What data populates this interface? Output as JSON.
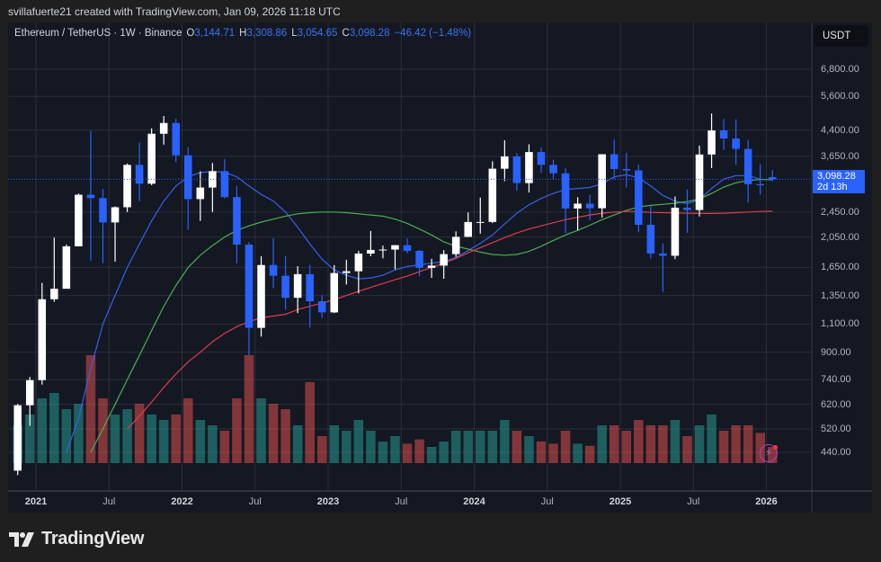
{
  "credit": "svillafuerte21 created with TradingView.com, Jan 09, 2026 11:18 UTC",
  "legend": {
    "symbol": "Ethereum / TetherUS · 1W · Binance",
    "o_label": "O",
    "open": "3,144.71",
    "h_label": "H",
    "high": "3,308.86",
    "l_label": "L",
    "low": "3,054.65",
    "c_label": "C",
    "close": "3,098.28",
    "change": "−46.42 (−1.48%)"
  },
  "currency_button": "USDT",
  "last_price": {
    "value": "3,098.28",
    "countdown": "2d 13h"
  },
  "brand": "TradingView",
  "colors": {
    "up_candle": "#ffffff",
    "down_candle": "#2962ff",
    "ma_blue": "#3661e8",
    "ma_green": "#4caf50",
    "ma_red": "#e03c4a",
    "volume_up": "#26a69a",
    "volume_down": "#ef5350",
    "accent": "#2962ff",
    "background": "#141823"
  },
  "chart_data": {
    "type": "candlestick",
    "y_scale": "log",
    "ylim": [
      440,
      6800
    ],
    "grid": true,
    "y_ticks": [
      "6,800.00",
      "5,600.00",
      "4,400.00",
      "3,650.00",
      "2,450.00",
      "2,050.00",
      "1,650.00",
      "1,350.00",
      "1,100.00",
      "900.00",
      "740.00",
      "620.00",
      "520.00",
      "440.00"
    ],
    "x_ticks": [
      {
        "label": "2021",
        "date": "2021-01",
        "year": true
      },
      {
        "label": "Jul",
        "date": "2021-07",
        "year": false
      },
      {
        "label": "2022",
        "date": "2022-01",
        "year": true
      },
      {
        "label": "Jul",
        "date": "2022-07",
        "year": false
      },
      {
        "label": "2023",
        "date": "2023-01",
        "year": true
      },
      {
        "label": "Jul",
        "date": "2023-07",
        "year": false
      },
      {
        "label": "2024",
        "date": "2024-01",
        "year": true
      },
      {
        "label": "Jul",
        "date": "2024-07",
        "year": false
      },
      {
        "label": "2025",
        "date": "2025-01",
        "year": true
      },
      {
        "label": "Jul",
        "date": "2025-07",
        "year": false
      },
      {
        "label": "2026",
        "date": "2026-01",
        "year": true
      }
    ],
    "first_date": "2020-11",
    "candles": [
      [
        "2020-11",
        386,
        622,
        374,
        616,
        35
      ],
      [
        "2020-12",
        616,
        754,
        532,
        737,
        45
      ],
      [
        "2021-01",
        737,
        1476,
        714,
        1314,
        60
      ],
      [
        "2021-02",
        1314,
        2041,
        1290,
        1416,
        65
      ],
      [
        "2021-03",
        1416,
        1943,
        1432,
        1918,
        50
      ],
      [
        "2021-04",
        1918,
        2797,
        1924,
        2773,
        55
      ],
      [
        "2021-05",
        2773,
        4372,
        1728,
        2707,
        100
      ],
      [
        "2021-06",
        2707,
        2891,
        1700,
        2275,
        60
      ],
      [
        "2021-07",
        2275,
        2551,
        1719,
        2536,
        45
      ],
      [
        "2021-08",
        2536,
        3466,
        2450,
        3433,
        50
      ],
      [
        "2021-09",
        3433,
        4027,
        2651,
        3001,
        55
      ],
      [
        "2021-10",
        3001,
        4460,
        2970,
        4288,
        45
      ],
      [
        "2021-11",
        4288,
        4868,
        3967,
        4631,
        40
      ],
      [
        "2021-12",
        4631,
        4778,
        3503,
        3676,
        45
      ],
      [
        "2022-01",
        3676,
        3900,
        2159,
        2688,
        60
      ],
      [
        "2022-02",
        2688,
        3280,
        2300,
        2919,
        40
      ],
      [
        "2022-03",
        2919,
        3479,
        2450,
        3282,
        35
      ],
      [
        "2022-04",
        3282,
        3580,
        2700,
        2727,
        30
      ],
      [
        "2022-05",
        2727,
        2955,
        1700,
        1942,
        60
      ],
      [
        "2022-06",
        1942,
        1974,
        881,
        1071,
        100
      ],
      [
        "2022-07",
        1071,
        1785,
        1006,
        1678,
        60
      ],
      [
        "2022-08",
        1678,
        2030,
        1422,
        1554,
        55
      ],
      [
        "2022-09",
        1554,
        1790,
        1220,
        1328,
        50
      ],
      [
        "2022-10",
        1328,
        1664,
        1190,
        1572,
        35
      ],
      [
        "2022-11",
        1572,
        1678,
        1073,
        1295,
        75
      ],
      [
        "2022-12",
        1295,
        1353,
        1150,
        1196,
        25
      ],
      [
        "2023-01",
        1196,
        1677,
        1190,
        1585,
        35
      ],
      [
        "2023-02",
        1585,
        1743,
        1460,
        1605,
        30
      ],
      [
        "2023-03",
        1605,
        1857,
        1370,
        1821,
        40
      ],
      [
        "2023-04",
        1821,
        2141,
        1786,
        1869,
        30
      ],
      [
        "2023-05",
        1869,
        1928,
        1760,
        1874,
        20
      ],
      [
        "2023-06",
        1874,
        1930,
        1626,
        1934,
        25
      ],
      [
        "2023-07",
        1934,
        2029,
        1826,
        1856,
        18
      ],
      [
        "2023-08",
        1856,
        1870,
        1550,
        1645,
        22
      ],
      [
        "2023-09",
        1645,
        1754,
        1531,
        1671,
        15
      ],
      [
        "2023-10",
        1671,
        1866,
        1521,
        1814,
        20
      ],
      [
        "2023-11",
        1814,
        2134,
        1778,
        2052,
        30
      ],
      [
        "2023-12",
        2052,
        2445,
        2048,
        2282,
        30
      ],
      [
        "2024-01",
        2282,
        2717,
        2100,
        2283,
        30
      ],
      [
        "2024-02",
        2283,
        3522,
        2265,
        3340,
        30
      ],
      [
        "2024-03",
        3340,
        4093,
        3056,
        3647,
        40
      ],
      [
        "2024-04",
        3647,
        3730,
        2853,
        3014,
        30
      ],
      [
        "2024-05",
        3014,
        3977,
        2817,
        3762,
        25
      ],
      [
        "2024-06",
        3762,
        3887,
        3240,
        3433,
        20
      ],
      [
        "2024-07",
        3433,
        3563,
        3087,
        3232,
        18
      ],
      [
        "2024-08",
        3232,
        3350,
        2111,
        2513,
        30
      ],
      [
        "2024-09",
        2513,
        2725,
        2150,
        2602,
        18
      ],
      [
        "2024-10",
        2602,
        2770,
        2310,
        2518,
        16
      ],
      [
        "2024-11",
        2518,
        3680,
        2356,
        3704,
        35
      ],
      [
        "2024-12",
        3704,
        4109,
        3100,
        3332,
        35
      ],
      [
        "2025-01",
        3332,
        3744,
        2920,
        3300,
        30
      ],
      [
        "2025-02",
        3300,
        3437,
        2120,
        2237,
        40
      ],
      [
        "2025-03",
        2237,
        2550,
        1760,
        1822,
        35
      ],
      [
        "2025-04",
        1822,
        1957,
        1385,
        1793,
        35
      ],
      [
        "2025-05",
        1793,
        2738,
        1750,
        2528,
        40
      ],
      [
        "2025-06",
        2528,
        2880,
        2111,
        2486,
        25
      ],
      [
        "2025-07",
        2486,
        3941,
        2373,
        3697,
        35
      ],
      [
        "2025-08",
        3697,
        4956,
        3355,
        4391,
        45
      ],
      [
        "2025-09",
        4391,
        4769,
        3815,
        4145,
        30
      ],
      [
        "2025-10",
        4145,
        4755,
        3435,
        3847,
        35
      ],
      [
        "2025-11",
        3847,
        4100,
        2623,
        2991,
        35
      ],
      [
        "2025-12",
        2991,
        3447,
        2775,
        2967,
        28
      ],
      [
        "2026-01",
        3144.71,
        3308.86,
        3054.65,
        3098.28,
        15
      ]
    ],
    "candle_fields": [
      "date",
      "open",
      "high",
      "low",
      "close",
      "volume_relative"
    ],
    "moving_averages": [
      {
        "color_key": "ma_blue",
        "values": [
          null,
          null,
          null,
          null,
          440,
          560,
          800,
          1100,
          1350,
          1650,
          1950,
          2300,
          2650,
          2950,
          3150,
          3250,
          3270,
          3260,
          3150,
          2950,
          2780,
          2650,
          2450,
          2200,
          1950,
          1750,
          1620,
          1560,
          1520,
          1530,
          1560,
          1620,
          1660,
          1680,
          1700,
          1720,
          1770,
          1860,
          1960,
          2080,
          2250,
          2430,
          2580,
          2700,
          2800,
          2880,
          2900,
          2920,
          3000,
          3150,
          3200,
          3130,
          2950,
          2760,
          2650,
          2600,
          2680,
          2900,
          3100,
          3180,
          3180,
          3100,
          3080
        ]
      },
      {
        "color_key": "ma_green",
        "values": [
          null,
          null,
          null,
          null,
          null,
          null,
          440,
          520,
          620,
          740,
          880,
          1050,
          1250,
          1450,
          1650,
          1800,
          1930,
          2050,
          2150,
          2220,
          2280,
          2330,
          2380,
          2420,
          2440,
          2450,
          2450,
          2440,
          2420,
          2400,
          2380,
          2330,
          2260,
          2170,
          2080,
          1980,
          1920,
          1880,
          1840,
          1810,
          1800,
          1810,
          1850,
          1920,
          2000,
          2080,
          2150,
          2230,
          2320,
          2400,
          2480,
          2540,
          2570,
          2590,
          2610,
          2640,
          2690,
          2800,
          2930,
          3020,
          3070,
          3090,
          3090
        ]
      },
      {
        "color_key": "ma_red",
        "values": [
          null,
          null,
          null,
          null,
          null,
          null,
          null,
          null,
          null,
          520,
          570,
          630,
          700,
          770,
          840,
          900,
          970,
          1030,
          1080,
          1120,
          1150,
          1165,
          1180,
          1220,
          1250,
          1280,
          1310,
          1350,
          1390,
          1430,
          1470,
          1510,
          1550,
          1600,
          1650,
          1700,
          1760,
          1830,
          1900,
          1970,
          2040,
          2110,
          2170,
          2220,
          2270,
          2320,
          2360,
          2400,
          2430,
          2450,
          2460,
          2455,
          2445,
          2440,
          2435,
          2430,
          2425,
          2425,
          2430,
          2440,
          2450,
          2460,
          2465
        ]
      }
    ],
    "last_value": 3098.28
  }
}
